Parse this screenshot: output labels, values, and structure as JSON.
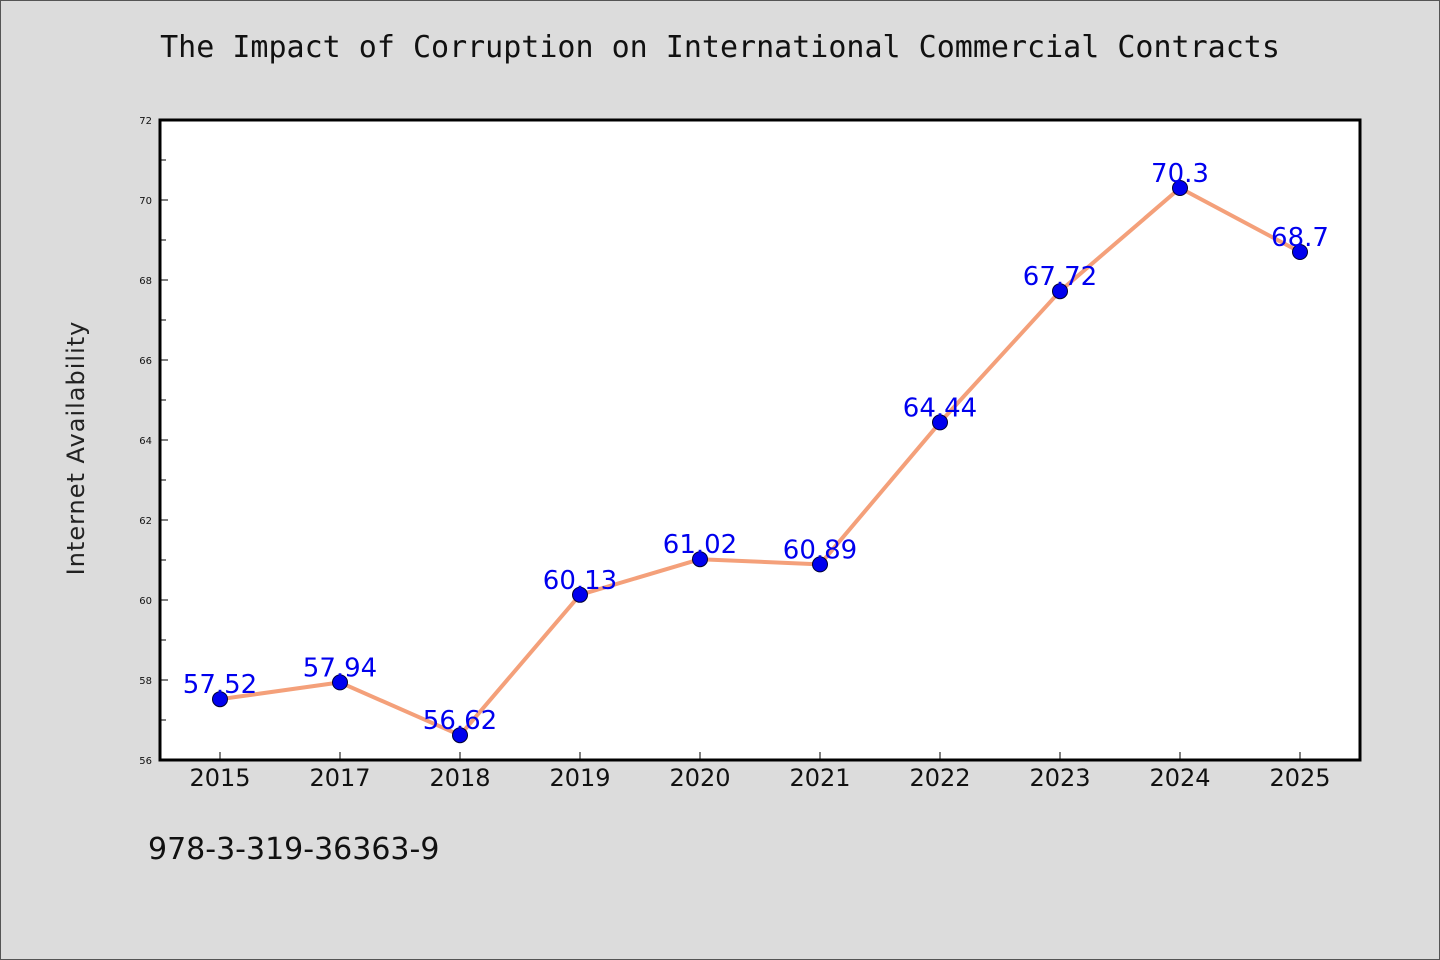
{
  "chart_data": {
    "type": "line",
    "title": "The Impact of Corruption on International Commercial Contracts",
    "xlabel": "",
    "ylabel": "Internet Availability",
    "categories": [
      "2015",
      "2017",
      "2018",
      "2019",
      "2020",
      "2021",
      "2022",
      "2023",
      "2024",
      "2025"
    ],
    "series": [
      {
        "values": [
          57.52,
          57.94,
          56.62,
          60.13,
          61.02,
          60.89,
          64.44,
          67.72,
          70.3,
          68.7
        ],
        "labels": [
          "57.52",
          "57.94",
          "56.62",
          "60.13",
          "61.02",
          "60.89",
          "64.44",
          "67.72",
          "70.3",
          "68.7"
        ],
        "line_color": "#f4a07a",
        "marker_color": "#0000ee"
      }
    ],
    "ylim": [
      56,
      72
    ],
    "yticks": [
      "56",
      "58",
      "60",
      "62",
      "64",
      "66",
      "68",
      "70",
      "72"
    ],
    "grid": false,
    "legend": "none"
  },
  "footer": {
    "isbn": "978-3-319-36363-9"
  }
}
